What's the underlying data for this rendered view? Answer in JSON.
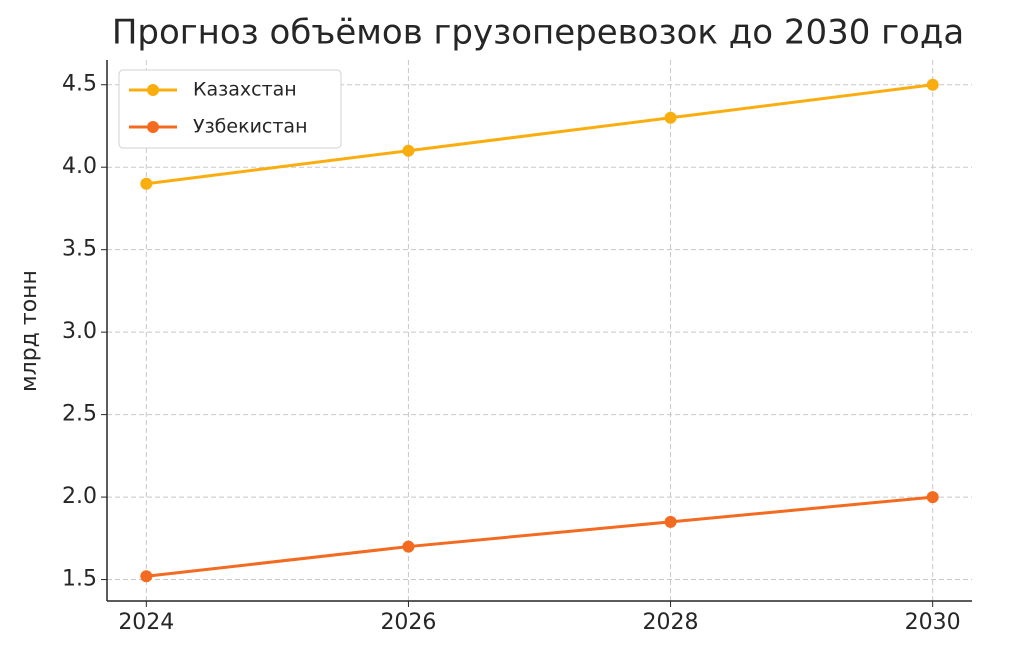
{
  "chart_data": {
    "type": "line",
    "title": "Прогноз объёмов грузоперевозок до 2030 года",
    "y_label": "млрд тонн",
    "x": [
      2024,
      2026,
      2028,
      2030
    ],
    "series": [
      {
        "name": "Казахстан",
        "color": "#f9ad0f",
        "values": [
          3.9,
          4.1,
          4.3,
          4.5
        ]
      },
      {
        "name": "Узбекистан",
        "color": "#f26b21",
        "values": [
          1.52,
          1.7,
          1.85,
          2.0
        ]
      }
    ],
    "xlim": [
      2023.7,
      2030.3
    ],
    "xticks": [
      2024,
      2026,
      2028,
      2030
    ],
    "ylim": [
      1.37,
      4.65
    ],
    "yticks": [
      1.5,
      {
        "value": 2,
        "label": "2.0"
      },
      2.5,
      {
        "value": 3,
        "label": "3.0"
      },
      3.5,
      {
        "value": 4,
        "label": "4.0"
      },
      4.5
    ],
    "grid": true,
    "legend": "upper left"
  }
}
